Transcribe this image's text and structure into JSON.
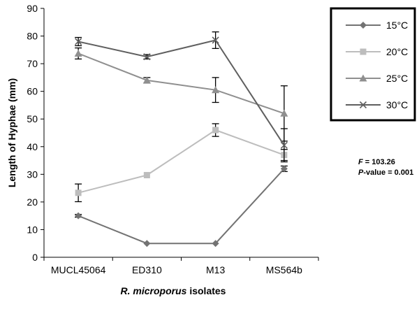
{
  "chart_data": {
    "type": "line",
    "categories": [
      "MUCL45064",
      "ED310",
      "M13",
      "MS564b"
    ],
    "xlabel_italic": "R. microporus",
    "xlabel_rest": " isolates",
    "ylabel": "Length of Hyphae (mm)",
    "ylim": [
      0,
      90
    ],
    "yticks": [
      0,
      10,
      20,
      30,
      40,
      50,
      60,
      70,
      80,
      90
    ],
    "grid": false,
    "legend_position": "right",
    "series": [
      {
        "name": "15°C",
        "marker": "diamond",
        "color": "#737373",
        "values": [
          15,
          5,
          5,
          32
        ],
        "errors": [
          0.5,
          0,
          0,
          1
        ]
      },
      {
        "name": "20°C",
        "marker": "square",
        "color": "#bdbdbd",
        "values": [
          23.3,
          29.7,
          46,
          37
        ],
        "errors": [
          3.2,
          0,
          2.3,
          2
        ]
      },
      {
        "name": "25°C",
        "marker": "triangle",
        "color": "#8f8f8f",
        "values": [
          73.7,
          64,
          60.5,
          52
        ],
        "errors": [
          2,
          1,
          4.5,
          10
        ]
      },
      {
        "name": "30°C",
        "marker": "x",
        "color": "#5f5f5f",
        "values": [
          78,
          72.5,
          78.5,
          40.5
        ],
        "errors": [
          1.5,
          0.8,
          3,
          6
        ]
      }
    ],
    "annotation": {
      "f_label": "F",
      "f_value": " = 103.26",
      "p_label": "P",
      "p_value": "-value = 0.001"
    }
  }
}
